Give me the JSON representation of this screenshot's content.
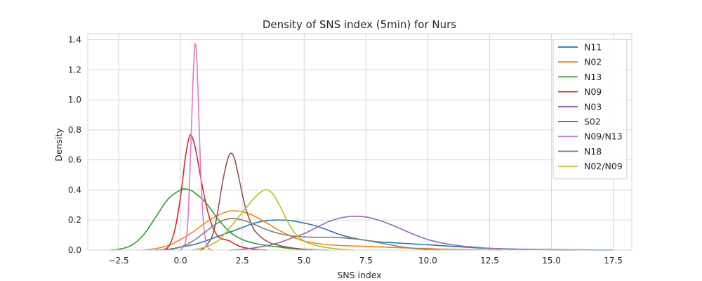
{
  "chart_data": {
    "type": "line",
    "title": "Density of SNS index (5min) for Nurs",
    "xlabel": "SNS index",
    "ylabel": "Density",
    "xlim": [
      -3.75,
      18.25
    ],
    "ylim": [
      0,
      1.44
    ],
    "xticks": [
      -2.5,
      0.0,
      2.5,
      5.0,
      7.5,
      10.0,
      12.5,
      15.0,
      17.5
    ],
    "xtick_labels": [
      "−2.5",
      "0.0",
      "2.5",
      "5.0",
      "7.5",
      "10.0",
      "12.5",
      "15.0",
      "17.5"
    ],
    "yticks": [
      0.0,
      0.2,
      0.4,
      0.6,
      0.8,
      1.0,
      1.2,
      1.4
    ],
    "ytick_labels": [
      "0.0",
      "0.2",
      "0.4",
      "0.6",
      "0.8",
      "1.0",
      "1.2",
      "1.4"
    ],
    "grid": true,
    "legend_position": "top-right",
    "series": [
      {
        "name": "N11",
        "color": "#1f77b4",
        "points": [
          [
            -1.0,
            0.0
          ],
          [
            -0.5,
            0.005
          ],
          [
            0.0,
            0.02
          ],
          [
            0.5,
            0.035
          ],
          [
            1.0,
            0.06
          ],
          [
            1.5,
            0.09
          ],
          [
            2.0,
            0.12
          ],
          [
            2.5,
            0.15
          ],
          [
            3.0,
            0.18
          ],
          [
            3.5,
            0.196
          ],
          [
            4.0,
            0.2
          ],
          [
            4.5,
            0.195
          ],
          [
            5.0,
            0.18
          ],
          [
            5.5,
            0.16
          ],
          [
            6.0,
            0.13
          ],
          [
            6.5,
            0.1
          ],
          [
            7.0,
            0.08
          ],
          [
            7.5,
            0.065
          ],
          [
            8.0,
            0.055
          ],
          [
            8.5,
            0.05
          ],
          [
            9.0,
            0.045
          ],
          [
            9.5,
            0.04
          ],
          [
            10.0,
            0.035
          ],
          [
            10.5,
            0.03
          ],
          [
            11.0,
            0.025
          ],
          [
            11.5,
            0.02
          ],
          [
            12.0,
            0.015
          ],
          [
            12.5,
            0.012
          ],
          [
            13.0,
            0.009
          ],
          [
            13.5,
            0.007
          ],
          [
            14.0,
            0.005
          ],
          [
            14.5,
            0.004
          ],
          [
            15.0,
            0.003
          ],
          [
            15.5,
            0.002
          ],
          [
            16.0,
            0.0015
          ],
          [
            16.5,
            0.001
          ],
          [
            17.0,
            0.0005
          ],
          [
            17.5,
            0.0002
          ]
        ]
      },
      {
        "name": "N02",
        "color": "#ff7f0e",
        "points": [
          [
            -1.5,
            0.0
          ],
          [
            -1.0,
            0.01
          ],
          [
            -0.5,
            0.03
          ],
          [
            0.0,
            0.07
          ],
          [
            0.5,
            0.12
          ],
          [
            1.0,
            0.18
          ],
          [
            1.5,
            0.23
          ],
          [
            2.0,
            0.26
          ],
          [
            2.5,
            0.255
          ],
          [
            3.0,
            0.225
          ],
          [
            3.5,
            0.18
          ],
          [
            4.0,
            0.13
          ],
          [
            4.5,
            0.09
          ],
          [
            5.0,
            0.06
          ],
          [
            5.5,
            0.045
          ],
          [
            6.0,
            0.035
          ],
          [
            6.5,
            0.03
          ],
          [
            7.0,
            0.027
          ],
          [
            7.5,
            0.025
          ],
          [
            8.0,
            0.022
          ],
          [
            8.5,
            0.018
          ],
          [
            9.0,
            0.015
          ],
          [
            9.5,
            0.012
          ],
          [
            10.0,
            0.01
          ],
          [
            10.5,
            0.007
          ],
          [
            11.0,
            0.005
          ],
          [
            11.5,
            0.003
          ],
          [
            12.0,
            0.002
          ],
          [
            12.5,
            0.001
          ],
          [
            13.0,
            0.0
          ]
        ]
      },
      {
        "name": "N13",
        "color": "#2ca02c",
        "points": [
          [
            -2.8,
            0.0
          ],
          [
            -2.5,
            0.005
          ],
          [
            -2.0,
            0.03
          ],
          [
            -1.5,
            0.1
          ],
          [
            -1.0,
            0.22
          ],
          [
            -0.5,
            0.34
          ],
          [
            0.0,
            0.4
          ],
          [
            0.25,
            0.405
          ],
          [
            0.5,
            0.39
          ],
          [
            1.0,
            0.32
          ],
          [
            1.5,
            0.21
          ],
          [
            2.0,
            0.12
          ],
          [
            2.5,
            0.07
          ],
          [
            3.0,
            0.045
          ],
          [
            3.5,
            0.03
          ],
          [
            4.0,
            0.02
          ],
          [
            4.5,
            0.01
          ],
          [
            5.0,
            0.005
          ],
          [
            5.5,
            0.002
          ],
          [
            6.0,
            0.0
          ]
        ]
      },
      {
        "name": "N09",
        "color": "#d62728",
        "points": [
          [
            -0.8,
            0.0
          ],
          [
            -0.5,
            0.02
          ],
          [
            -0.25,
            0.12
          ],
          [
            0.0,
            0.35
          ],
          [
            0.2,
            0.62
          ],
          [
            0.35,
            0.75
          ],
          [
            0.45,
            0.76
          ],
          [
            0.6,
            0.68
          ],
          [
            0.8,
            0.5
          ],
          [
            1.0,
            0.33
          ],
          [
            1.2,
            0.2
          ],
          [
            1.4,
            0.12
          ],
          [
            1.6,
            0.08
          ],
          [
            1.8,
            0.07
          ],
          [
            2.0,
            0.06
          ],
          [
            2.2,
            0.04
          ],
          [
            2.5,
            0.02
          ],
          [
            3.0,
            0.005
          ],
          [
            3.5,
            0.0
          ]
        ]
      },
      {
        "name": "N03",
        "color": "#9467bd",
        "points": [
          [
            2.0,
            0.0
          ],
          [
            2.5,
            0.005
          ],
          [
            3.0,
            0.015
          ],
          [
            3.5,
            0.03
          ],
          [
            4.0,
            0.05
          ],
          [
            4.5,
            0.08
          ],
          [
            5.0,
            0.11
          ],
          [
            5.5,
            0.15
          ],
          [
            6.0,
            0.19
          ],
          [
            6.5,
            0.215
          ],
          [
            7.0,
            0.225
          ],
          [
            7.5,
            0.22
          ],
          [
            8.0,
            0.2
          ],
          [
            8.5,
            0.17
          ],
          [
            9.0,
            0.135
          ],
          [
            9.5,
            0.1
          ],
          [
            10.0,
            0.07
          ],
          [
            10.5,
            0.05
          ],
          [
            11.0,
            0.035
          ],
          [
            11.5,
            0.025
          ],
          [
            12.0,
            0.018
          ],
          [
            12.5,
            0.012
          ],
          [
            13.0,
            0.008
          ],
          [
            13.5,
            0.005
          ],
          [
            14.0,
            0.003
          ],
          [
            14.5,
            0.002
          ],
          [
            15.0,
            0.001
          ],
          [
            15.5,
            0.0005
          ],
          [
            16.0,
            0.0
          ]
        ]
      },
      {
        "name": "S02",
        "color": "#8c564b",
        "points": [
          [
            0.8,
            0.0
          ],
          [
            1.0,
            0.02
          ],
          [
            1.3,
            0.1
          ],
          [
            1.5,
            0.25
          ],
          [
            1.7,
            0.45
          ],
          [
            1.9,
            0.6
          ],
          [
            2.05,
            0.645
          ],
          [
            2.2,
            0.6
          ],
          [
            2.4,
            0.45
          ],
          [
            2.6,
            0.3
          ],
          [
            2.8,
            0.2
          ],
          [
            3.0,
            0.13
          ],
          [
            3.3,
            0.08
          ],
          [
            3.6,
            0.05
          ],
          [
            4.0,
            0.03
          ],
          [
            4.5,
            0.015
          ],
          [
            5.0,
            0.005
          ],
          [
            5.3,
            0.0
          ]
        ]
      },
      {
        "name": "N09/N13",
        "color": "#e377c2",
        "points": [
          [
            0.0,
            0.0
          ],
          [
            0.2,
            0.05
          ],
          [
            0.3,
            0.2
          ],
          [
            0.4,
            0.6
          ],
          [
            0.5,
            1.1
          ],
          [
            0.58,
            1.36
          ],
          [
            0.65,
            1.3
          ],
          [
            0.72,
            1.0
          ],
          [
            0.8,
            0.6
          ],
          [
            0.9,
            0.25
          ],
          [
            1.0,
            0.08
          ],
          [
            1.1,
            0.02
          ],
          [
            1.2,
            0.005
          ],
          [
            1.3,
            0.0
          ]
        ]
      },
      {
        "name": "N18",
        "color": "#7f7f7f",
        "points": [
          [
            -0.5,
            0.0
          ],
          [
            0.0,
            0.02
          ],
          [
            0.5,
            0.06
          ],
          [
            1.0,
            0.12
          ],
          [
            1.5,
            0.18
          ],
          [
            2.0,
            0.21
          ],
          [
            2.5,
            0.2
          ],
          [
            3.0,
            0.17
          ],
          [
            3.5,
            0.135
          ],
          [
            4.0,
            0.11
          ],
          [
            4.5,
            0.095
          ],
          [
            5.0,
            0.088
          ],
          [
            5.5,
            0.085
          ],
          [
            6.0,
            0.085
          ],
          [
            6.5,
            0.082
          ],
          [
            7.0,
            0.075
          ],
          [
            7.5,
            0.065
          ],
          [
            8.0,
            0.05
          ],
          [
            8.5,
            0.035
          ],
          [
            9.0,
            0.02
          ],
          [
            9.5,
            0.01
          ],
          [
            10.0,
            0.005
          ],
          [
            10.5,
            0.0
          ]
        ]
      },
      {
        "name": "N02/N09",
        "color": "#bcbd22",
        "points": [
          [
            0.5,
            0.0
          ],
          [
            1.0,
            0.02
          ],
          [
            1.5,
            0.06
          ],
          [
            2.0,
            0.15
          ],
          [
            2.5,
            0.25
          ],
          [
            3.0,
            0.35
          ],
          [
            3.4,
            0.4
          ],
          [
            3.7,
            0.38
          ],
          [
            4.0,
            0.3
          ],
          [
            4.3,
            0.2
          ],
          [
            4.6,
            0.12
          ],
          [
            5.0,
            0.06
          ],
          [
            5.5,
            0.03
          ],
          [
            6.0,
            0.015
          ],
          [
            6.5,
            0.005
          ],
          [
            7.0,
            0.0
          ]
        ]
      }
    ]
  }
}
